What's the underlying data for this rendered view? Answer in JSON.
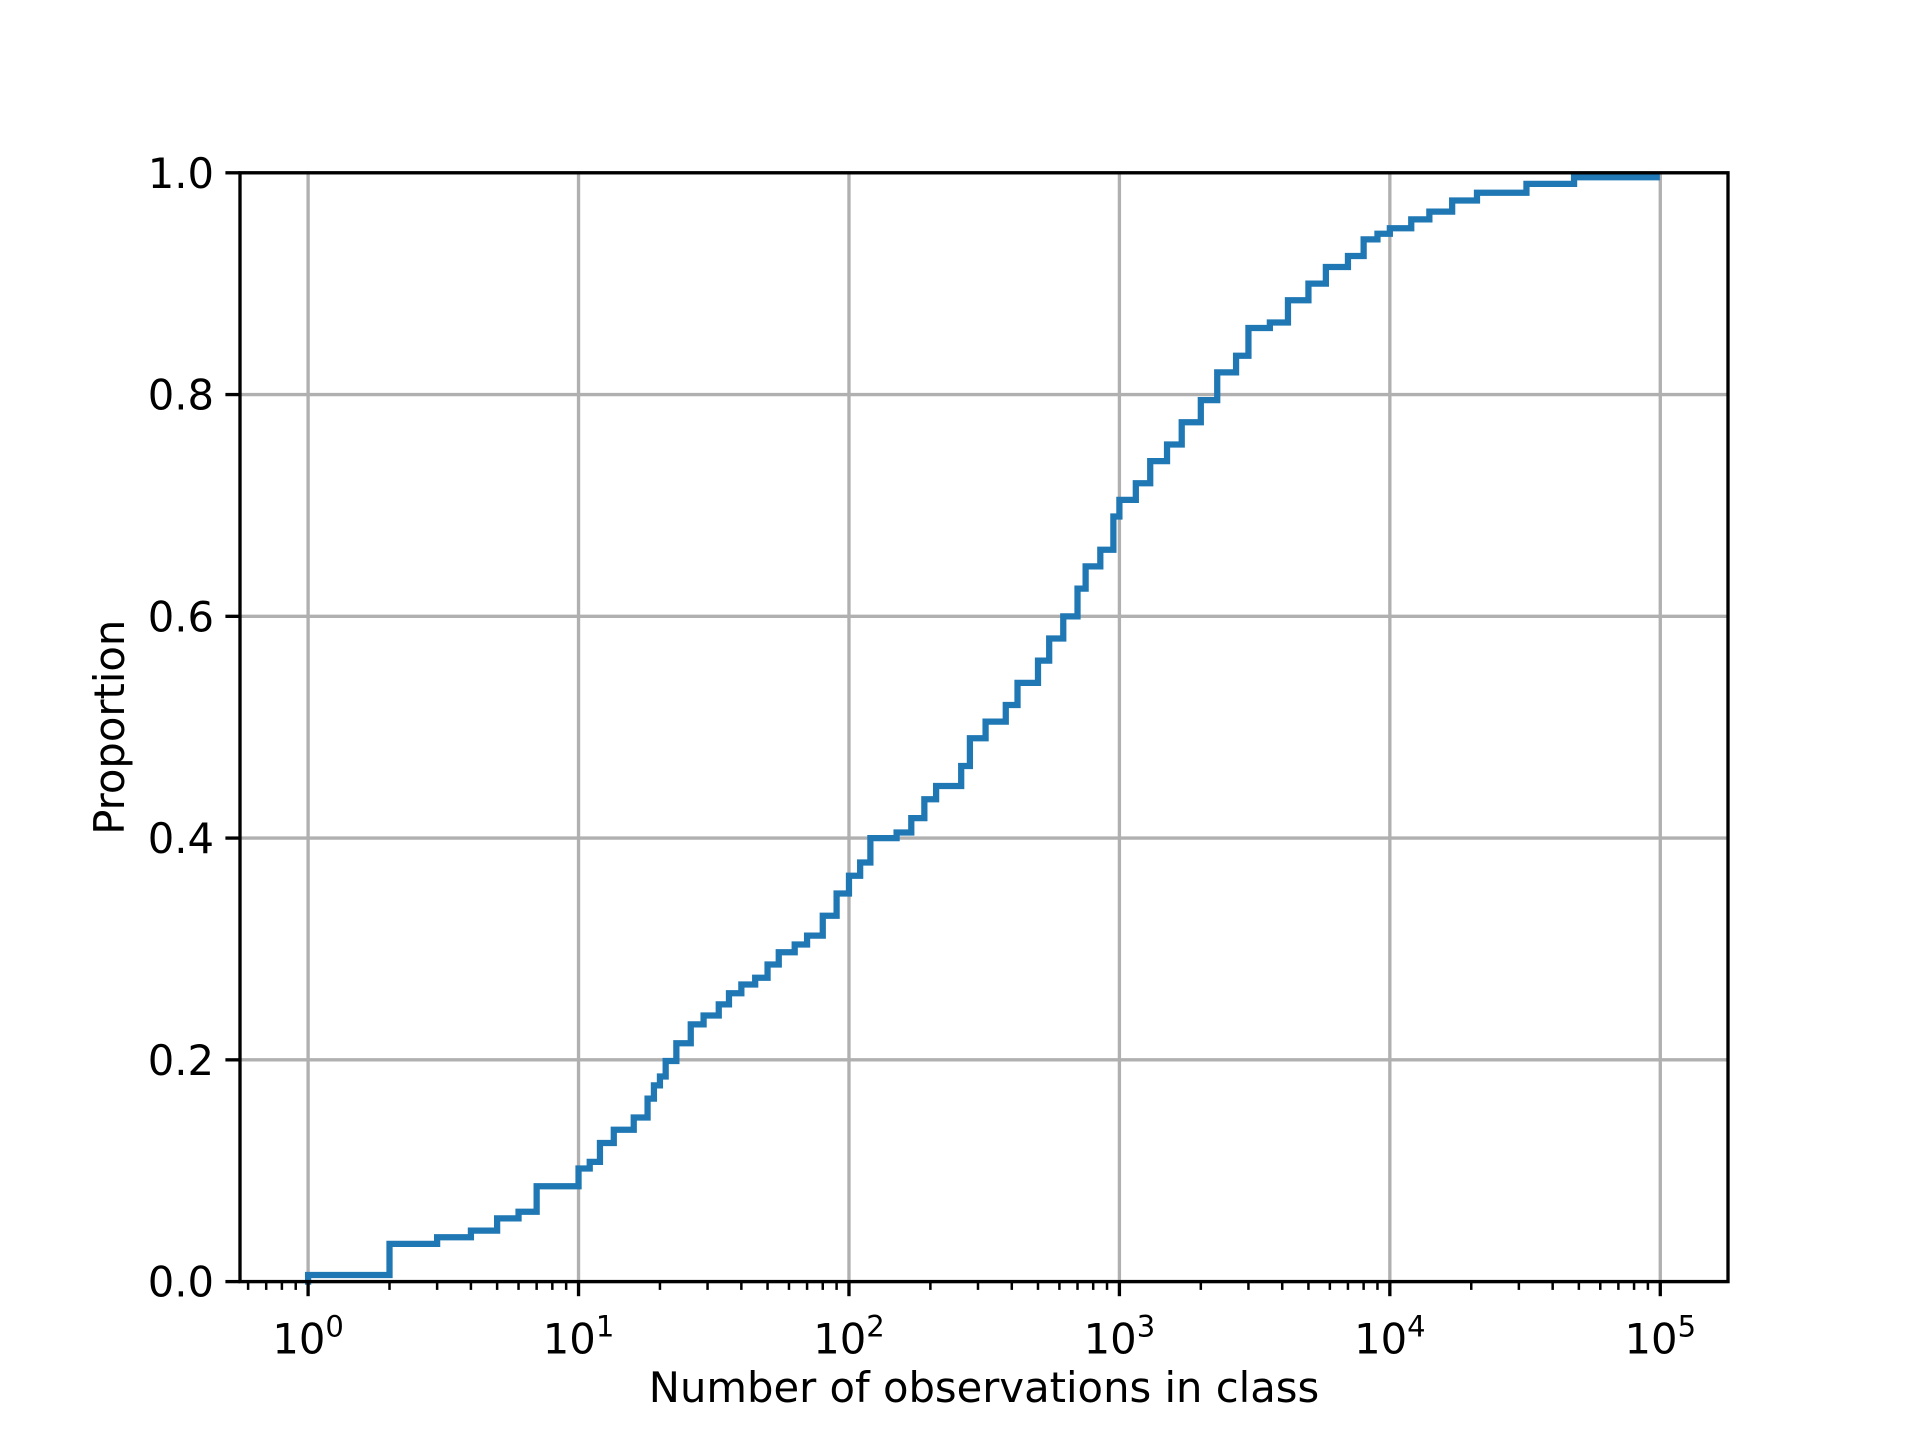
{
  "chart_data": {
    "type": "line",
    "subtype": "ecdf-step",
    "title": "",
    "xlabel": "Number of observations in class",
    "ylabel": "Proportion",
    "xscale": "log",
    "xlim": [
      0.56,
      178000
    ],
    "ylim": [
      0,
      1
    ],
    "grid": true,
    "legend": "none",
    "line_color": "#1f77b4",
    "x_ticks": [
      {
        "base": "10",
        "exp": "0",
        "value": 1
      },
      {
        "base": "10",
        "exp": "1",
        "value": 10
      },
      {
        "base": "10",
        "exp": "2",
        "value": 100
      },
      {
        "base": "10",
        "exp": "3",
        "value": 1000
      },
      {
        "base": "10",
        "exp": "4",
        "value": 10000
      },
      {
        "base": "10",
        "exp": "5",
        "value": 100000
      }
    ],
    "y_ticks": [
      {
        "label": "0.0",
        "value": 0
      },
      {
        "label": "0.2",
        "value": 0.2
      },
      {
        "label": "0.4",
        "value": 0.4
      },
      {
        "label": "0.6",
        "value": 0.6
      },
      {
        "label": "0.8",
        "value": 0.8
      },
      {
        "label": "1.0",
        "value": 1.0
      }
    ],
    "points": [
      [
        1,
        0.006
      ],
      [
        2,
        0.034
      ],
      [
        3,
        0.04
      ],
      [
        4,
        0.046
      ],
      [
        5,
        0.057
      ],
      [
        6,
        0.063
      ],
      [
        7,
        0.086
      ],
      [
        10,
        0.102
      ],
      [
        11,
        0.108
      ],
      [
        12,
        0.125
      ],
      [
        13.5,
        0.137
      ],
      [
        16,
        0.148
      ],
      [
        18,
        0.165
      ],
      [
        19,
        0.177
      ],
      [
        20,
        0.185
      ],
      [
        21,
        0.199
      ],
      [
        23,
        0.215
      ],
      [
        26,
        0.232
      ],
      [
        29,
        0.24
      ],
      [
        33,
        0.25
      ],
      [
        36,
        0.26
      ],
      [
        40,
        0.268
      ],
      [
        45,
        0.274
      ],
      [
        50,
        0.286
      ],
      [
        55,
        0.297
      ],
      [
        63,
        0.304
      ],
      [
        70,
        0.312
      ],
      [
        80,
        0.33
      ],
      [
        90,
        0.35
      ],
      [
        100,
        0.366
      ],
      [
        110,
        0.378
      ],
      [
        120,
        0.4
      ],
      [
        150,
        0.405
      ],
      [
        170,
        0.418
      ],
      [
        190,
        0.435
      ],
      [
        210,
        0.447
      ],
      [
        260,
        0.465
      ],
      [
        280,
        0.49
      ],
      [
        320,
        0.505
      ],
      [
        380,
        0.52
      ],
      [
        420,
        0.54
      ],
      [
        500,
        0.56
      ],
      [
        550,
        0.58
      ],
      [
        620,
        0.6
      ],
      [
        700,
        0.625
      ],
      [
        750,
        0.645
      ],
      [
        850,
        0.66
      ],
      [
        950,
        0.69
      ],
      [
        1000,
        0.705
      ],
      [
        1150,
        0.72
      ],
      [
        1300,
        0.74
      ],
      [
        1500,
        0.755
      ],
      [
        1700,
        0.775
      ],
      [
        2000,
        0.795
      ],
      [
        2300,
        0.82
      ],
      [
        2700,
        0.835
      ],
      [
        3000,
        0.86
      ],
      [
        3600,
        0.865
      ],
      [
        4200,
        0.885
      ],
      [
        5000,
        0.9
      ],
      [
        5800,
        0.915
      ],
      [
        7000,
        0.925
      ],
      [
        8000,
        0.94
      ],
      [
        9000,
        0.945
      ],
      [
        10000,
        0.95
      ],
      [
        12000,
        0.958
      ],
      [
        14000,
        0.965
      ],
      [
        17000,
        0.975
      ],
      [
        21000,
        0.982
      ],
      [
        32000,
        0.99
      ],
      [
        48000,
        0.996
      ],
      [
        97000,
        0.997
      ]
    ]
  }
}
